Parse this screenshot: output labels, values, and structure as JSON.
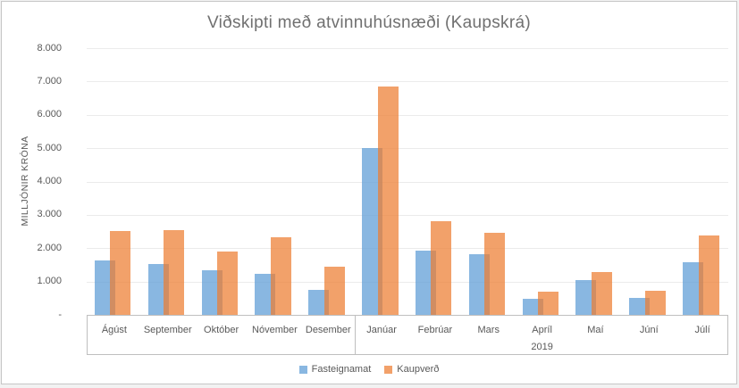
{
  "chart_data": {
    "type": "bar",
    "title": "Viðskipti með atvinnuhúsnæði (Kaupskrá)",
    "ylabel": "MILLJÓNIR KRÓNA",
    "xlabel": "",
    "ylim": [
      0,
      8000
    ],
    "ytick_step": 1000,
    "ytick_labels": [
      "-",
      "1.000",
      "2.000",
      "3.000",
      "4.000",
      "5.000",
      "6.000",
      "7.000",
      "8.000"
    ],
    "grid": true,
    "legend_position": "bottom",
    "categories": [
      "Ágúst",
      "September",
      "Október",
      "Nóvember",
      "Desember",
      "Janúar",
      "Febrúar",
      "Mars",
      "Apríl",
      "Maí",
      "Júní",
      "Júlí"
    ],
    "groups": [
      {
        "label": "",
        "start": 0,
        "count": 5
      },
      {
        "label": "2019",
        "start": 5,
        "count": 7
      }
    ],
    "series": [
      {
        "name": "Fasteignamat",
        "color": "#5B9BD5",
        "opacity": 0.72,
        "values": [
          1640,
          1520,
          1330,
          1220,
          740,
          5010,
          1940,
          1830,
          490,
          1050,
          510,
          1590
        ]
      },
      {
        "name": "Kaupverð",
        "color": "#ED7D31",
        "opacity": 0.72,
        "values": [
          2510,
          2540,
          1890,
          2320,
          1440,
          6850,
          2800,
          2470,
          690,
          1290,
          710,
          2370
        ]
      }
    ],
    "colors": {
      "axis_text": "#595959",
      "title_text": "#707070",
      "grid_line": "#ebebeb",
      "axis_line": "#bfbfbf",
      "frame_border": "#c6c6c6"
    }
  }
}
